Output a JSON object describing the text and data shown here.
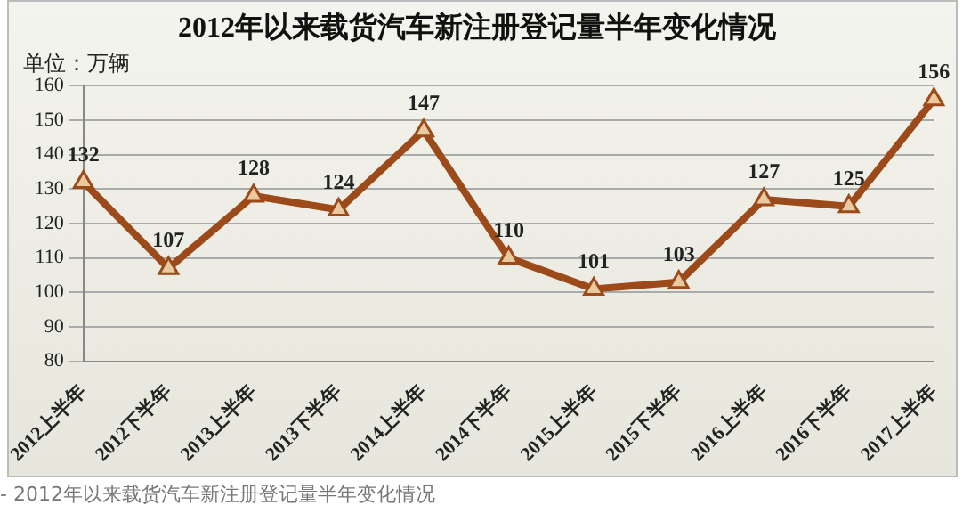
{
  "chart_data": {
    "type": "line",
    "title": "2012年以来载货汽车新注册登记量半年变化情况",
    "ylabel": "单位：万辆",
    "categories": [
      "2012上半年",
      "2012下半年",
      "2013上半年",
      "2013下半年",
      "2014上半年",
      "2014下半年",
      "2015上半年",
      "2015下半年",
      "2016上半年",
      "2016下半年",
      "2017上半年"
    ],
    "series": [
      {
        "color": "#9c4a1a",
        "values": [
          132,
          107,
          128,
          124,
          147,
          110,
          101,
          103,
          127,
          125,
          156
        ]
      }
    ],
    "ylim": [
      80,
      160
    ],
    "yticks": [
      80,
      90,
      100,
      110,
      120,
      130,
      140,
      150,
      160
    ],
    "grid": "y",
    "marker": "triangle",
    "line_style": "solid",
    "legend": false,
    "data_labels": true,
    "annotations": [
      "- 2012年以来载货汽车新注册登记量半年变化情况"
    ]
  }
}
